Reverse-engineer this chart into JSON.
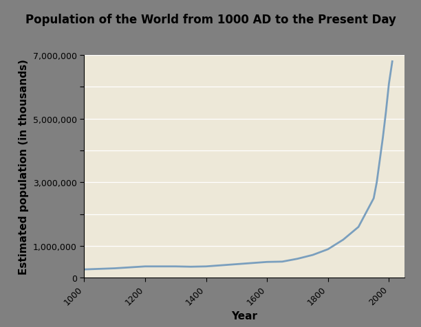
{
  "title": "Population of the World from 1000 AD to the Present Day",
  "xlabel": "Year",
  "ylabel": "Estimated population (in thousands)",
  "title_bg_color": "#e8847f",
  "plot_bg_color": "#ede8d8",
  "figure_bg_color": "#ffffff",
  "outer_border_color": "#808080",
  "line_color": "#7a9fbe",
  "line_width": 2.0,
  "xlim": [
    1000,
    2050
  ],
  "ylim": [
    0,
    7000000
  ],
  "xticks": [
    1000,
    1200,
    1400,
    1600,
    1800,
    2000
  ],
  "yticks": [
    0,
    1000000,
    2000000,
    3000000,
    4000000,
    5000000,
    6000000,
    7000000
  ],
  "ytick_labels": [
    "0",
    "1,000,000",
    "",
    "3,000,000",
    "",
    "5,000,000",
    "",
    "7,000,000"
  ],
  "years": [
    1000,
    1100,
    1200,
    1300,
    1350,
    1400,
    1500,
    1600,
    1650,
    1700,
    1750,
    1800,
    1850,
    1900,
    1950,
    1960,
    1970,
    1980,
    1990,
    2000,
    2011
  ],
  "population": [
    265000,
    300000,
    360000,
    360000,
    350000,
    360000,
    430000,
    500000,
    510000,
    600000,
    720000,
    900000,
    1200000,
    1600000,
    2500000,
    3000000,
    3700000,
    4400000,
    5200000,
    6100000,
    6800000
  ],
  "title_fontsize": 12,
  "axis_label_fontsize": 11,
  "tick_fontsize": 9
}
